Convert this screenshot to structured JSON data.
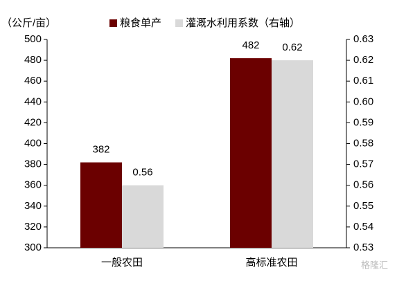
{
  "chart_data": {
    "type": "bar",
    "y_axis_label": "（公斤/亩）",
    "categories": [
      "一般农田",
      "高标准农田"
    ],
    "series": [
      {
        "name": "粮食单产",
        "color": "#6b0000",
        "values": [
          382,
          482
        ]
      },
      {
        "name": "灌溉水利用系数（右轴）",
        "color": "#d9d9d9",
        "values": [
          0.56,
          0.62
        ],
        "axis": "y2"
      }
    ],
    "ylim": [
      300,
      500
    ],
    "yticks": [
      300,
      320,
      340,
      360,
      380,
      400,
      420,
      440,
      460,
      480,
      500
    ],
    "y2lim": [
      0.53,
      0.63
    ],
    "y2ticks": [
      0.53,
      0.54,
      0.55,
      0.56,
      0.57,
      0.58,
      0.59,
      {
        "value": 0.6,
        "label": "0.60"
      },
      0.61,
      0.62,
      0.63
    ],
    "grid": false,
    "legend": "top",
    "watermark": "格隆汇"
  }
}
